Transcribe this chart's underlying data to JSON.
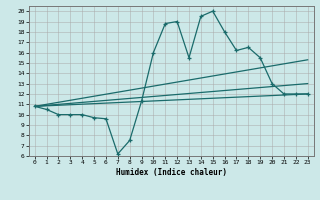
{
  "title": "",
  "xlabel": "Humidex (Indice chaleur)",
  "bg_color": "#cce8e8",
  "grid_color": "#aaaaaa",
  "line_color": "#1a6b6b",
  "xlim": [
    -0.5,
    23.5
  ],
  "ylim": [
    6,
    20.5
  ],
  "xticks": [
    0,
    1,
    2,
    3,
    4,
    5,
    6,
    7,
    8,
    9,
    10,
    11,
    12,
    13,
    14,
    15,
    16,
    17,
    18,
    19,
    20,
    21,
    22,
    23
  ],
  "yticks": [
    6,
    7,
    8,
    9,
    10,
    11,
    12,
    13,
    14,
    15,
    16,
    17,
    18,
    19,
    20
  ],
  "series1_x": [
    0,
    1,
    2,
    3,
    4,
    5,
    6,
    7,
    8,
    9,
    10,
    11,
    12,
    13,
    14,
    15,
    16,
    17,
    18,
    19,
    20,
    21,
    22,
    23
  ],
  "series1_y": [
    10.8,
    10.5,
    10.0,
    10.0,
    10.0,
    9.7,
    9.6,
    6.2,
    7.5,
    11.3,
    16.0,
    18.8,
    19.0,
    15.5,
    19.5,
    20.0,
    18.0,
    16.2,
    16.5,
    15.5,
    13.0,
    12.0,
    12.0,
    12.0
  ],
  "series2_x": [
    0,
    23
  ],
  "series2_y": [
    10.8,
    15.3
  ],
  "series3_x": [
    0,
    23
  ],
  "series3_y": [
    10.8,
    13.0
  ],
  "series4_x": [
    0,
    23
  ],
  "series4_y": [
    10.8,
    12.0
  ]
}
